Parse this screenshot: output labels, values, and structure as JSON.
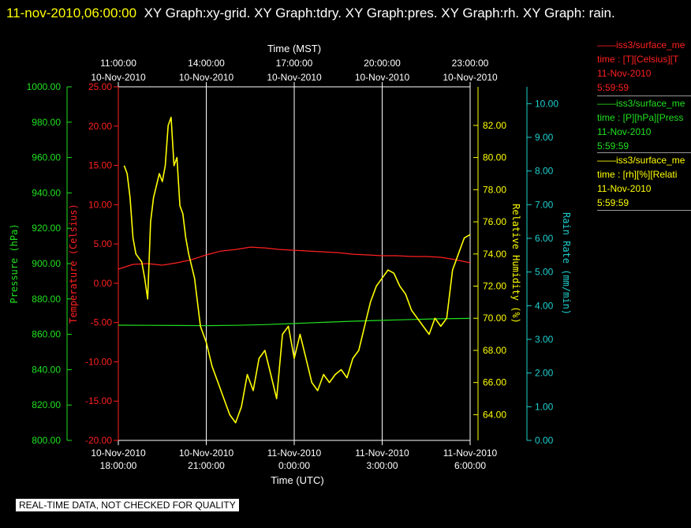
{
  "header": {
    "timestamp": "11-nov-2010,06:00:00",
    "title": "XY Graph:xy-grid.  XY Graph:tdry.  XY Graph:pres.  XY Graph:rh.  XY Graph: rain."
  },
  "legend": [
    {
      "name": "——iss3/surface_me",
      "desc": "time : [T][Celsius][T",
      "date": "11-Nov-2010",
      "time": "5:59:59",
      "color": "#ff2020"
    },
    {
      "name": "——iss3/surface_me",
      "desc": "time : [P][hPa][Press",
      "date": "11-Nov-2010",
      "time": "5:59:59",
      "color": "#20e020"
    },
    {
      "name": "——iss3/surface_me",
      "desc": "time : [rh][%][Relati",
      "date": "11-Nov-2010",
      "time": "5:59:59",
      "color": "#ffff00"
    }
  ],
  "footer": "REAL-TIME DATA, NOT CHECKED FOR QUALITY",
  "chart_data": {
    "type": "line",
    "x_bottom": {
      "label": "Time (UTC)",
      "ticks": [
        {
          "date": "10-Nov-2010",
          "time": "18:00:00"
        },
        {
          "date": "10-Nov-2010",
          "time": "21:00:00"
        },
        {
          "date": "11-Nov-2010",
          "time": "0:00:00"
        },
        {
          "date": "11-Nov-2010",
          "time": "3:00:00"
        },
        {
          "date": "11-Nov-2010",
          "time": "6:00:00"
        }
      ]
    },
    "x_top": {
      "label": "Time (MST)",
      "ticks": [
        {
          "time": "11:00:00",
          "date": "10-Nov-2010"
        },
        {
          "time": "14:00:00",
          "date": "10-Nov-2010"
        },
        {
          "time": "17:00:00",
          "date": "10-Nov-2010"
        },
        {
          "time": "20:00:00",
          "date": "10-Nov-2010"
        },
        {
          "time": "23:00:00",
          "date": "10-Nov-2010"
        }
      ]
    },
    "x_range_hours": [
      0,
      12
    ],
    "axes": {
      "pressure": {
        "label": "Pressure (hPa)",
        "color": "#20e020",
        "range": [
          800,
          1000
        ],
        "ticks": [
          "800.00",
          "820.00",
          "840.00",
          "860.00",
          "880.00",
          "900.00",
          "920.00",
          "940.00",
          "960.00",
          "980.00",
          "1000.00"
        ]
      },
      "temperature": {
        "label": "Temperature (Celsius)",
        "color": "#ff2020",
        "range": [
          -20,
          25
        ],
        "ticks": [
          "-20.00",
          "-15.00",
          "-10.00",
          "-5.00",
          "0.00",
          "5.00",
          "10.00",
          "15.00",
          "20.00",
          "25.00"
        ]
      },
      "humidity": {
        "label": "Relative Humidity (%)",
        "color": "#ffff00",
        "range": [
          62.4,
          84.4
        ],
        "ticks": [
          "64.00",
          "66.00",
          "68.00",
          "70.00",
          "72.00",
          "74.00",
          "76.00",
          "78.00",
          "80.00",
          "82.00"
        ]
      },
      "rain": {
        "label": "Rain Rate (mm/min)",
        "color": "#20d0d0",
        "range": [
          0,
          10.5
        ],
        "ticks": [
          "0.00",
          "1.00",
          "2.00",
          "3.00",
          "4.00",
          "5.00",
          "6.00",
          "7.00",
          "8.00",
          "9.00",
          "10.00"
        ]
      }
    },
    "grid": true,
    "series": [
      {
        "name": "iss3/surface_me time : [T][Celsius][T",
        "axis": "temperature",
        "color": "#ff2020",
        "x": [
          0,
          0.5,
          1.0,
          1.5,
          2.0,
          2.5,
          3.0,
          3.5,
          4.0,
          4.5,
          5.0,
          5.5,
          6.0,
          6.5,
          7.0,
          7.5,
          8.0,
          8.5,
          9.0,
          9.5,
          10.0,
          10.5,
          11.0,
          11.5,
          12.0
        ],
        "values": [
          1.8,
          2.4,
          2.5,
          2.3,
          2.6,
          3.0,
          3.6,
          4.1,
          4.3,
          4.6,
          4.5,
          4.3,
          4.2,
          4.1,
          4.0,
          3.9,
          3.7,
          3.6,
          3.5,
          3.5,
          3.4,
          3.4,
          3.3,
          3.0,
          2.6
        ]
      },
      {
        "name": "iss3/surface_me time : [P][hPa][Press",
        "axis": "pressure",
        "color": "#20e020",
        "x": [
          0,
          1,
          2,
          3,
          4,
          5,
          6,
          7,
          8,
          9,
          10,
          11,
          12
        ],
        "values": [
          865.2,
          865.1,
          865.0,
          864.9,
          865.1,
          865.5,
          866.1,
          866.8,
          867.4,
          867.9,
          868.4,
          868.8,
          869.0
        ]
      },
      {
        "name": "iss3/surface_me time : [rh][%][Relati",
        "axis": "humidity",
        "color": "#ffff00",
        "x": [
          0.2,
          0.3,
          0.4,
          0.5,
          0.6,
          0.8,
          0.9,
          1.0,
          1.1,
          1.2,
          1.4,
          1.5,
          1.6,
          1.7,
          1.8,
          1.9,
          2.0,
          2.1,
          2.2,
          2.3,
          2.4,
          2.6,
          2.8,
          3.0,
          3.2,
          3.4,
          3.6,
          3.8,
          4.0,
          4.2,
          4.4,
          4.6,
          4.8,
          5.0,
          5.2,
          5.4,
          5.6,
          5.8,
          6.0,
          6.2,
          6.4,
          6.6,
          6.8,
          7.0,
          7.2,
          7.4,
          7.6,
          7.8,
          8.0,
          8.2,
          8.4,
          8.6,
          8.8,
          9.0,
          9.2,
          9.4,
          9.6,
          9.8,
          10.0,
          10.2,
          10.4,
          10.6,
          10.8,
          11.0,
          11.2,
          11.4,
          11.6,
          11.8,
          12.0
        ],
        "values": [
          79.5,
          79.0,
          77.5,
          75.0,
          74.0,
          73.5,
          72.5,
          71.2,
          76.0,
          77.5,
          79.0,
          78.5,
          79.5,
          82.0,
          82.5,
          79.5,
          80.0,
          77.0,
          76.5,
          75.0,
          74.0,
          72.5,
          69.5,
          68.5,
          67.0,
          66.0,
          65.0,
          64.0,
          63.5,
          64.5,
          66.5,
          65.5,
          67.5,
          68.0,
          66.5,
          65.0,
          69.0,
          69.5,
          67.5,
          69.0,
          67.5,
          66.0,
          65.5,
          66.5,
          66.0,
          66.5,
          66.8,
          66.3,
          67.5,
          68.0,
          69.5,
          71.0,
          72.0,
          72.5,
          73.0,
          72.8,
          72.0,
          71.5,
          70.5,
          70.0,
          69.5,
          69.0,
          70.0,
          69.5,
          70.0,
          73.0,
          74.0,
          75.0,
          75.2
        ]
      }
    ]
  }
}
